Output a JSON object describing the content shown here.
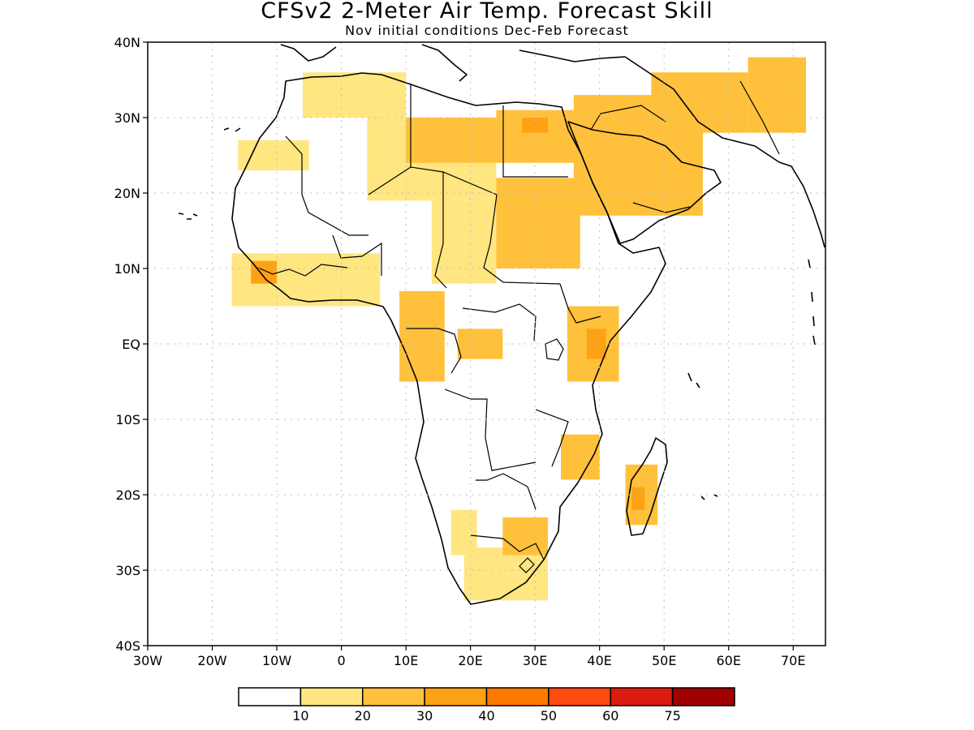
{
  "title": "CFSv2 2-Meter Air Temp. Forecast Skill",
  "subtitle": "Nov initial conditions   Dec-Feb Forecast",
  "axes": {
    "lon_labels": [
      "30W",
      "20W",
      "10W",
      "0",
      "10E",
      "20E",
      "30E",
      "40E",
      "50E",
      "60E",
      "70E"
    ],
    "lon_values": [
      -30,
      -20,
      -10,
      0,
      10,
      20,
      30,
      40,
      50,
      60,
      70
    ],
    "lat_labels": [
      "40N",
      "30N",
      "20N",
      "10N",
      "EQ",
      "10S",
      "20S",
      "30S",
      "40S"
    ],
    "lat_values": [
      40,
      30,
      20,
      10,
      0,
      -10,
      -20,
      -30,
      -40
    ],
    "lon_range": [
      -30,
      75
    ],
    "lat_range": [
      -40,
      40
    ]
  },
  "colorbar": {
    "labels": [
      "10",
      "20",
      "30",
      "40",
      "50",
      "60",
      "75"
    ],
    "colors": [
      "#ffffff",
      "#ffe680",
      "#ffc13c",
      "#ffa114",
      "#ff7a00",
      "#ff4a10",
      "#dc1a10",
      "#a00000"
    ]
  },
  "regions": [
    {
      "level": 1,
      "pts": [
        [
          -16,
          27
        ],
        [
          -5,
          27
        ],
        [
          -5,
          23
        ],
        [
          -16,
          23
        ]
      ]
    },
    {
      "level": 1,
      "pts": [
        [
          -6,
          36
        ],
        [
          10,
          36
        ],
        [
          10,
          30
        ],
        [
          -6,
          30
        ]
      ]
    },
    {
      "level": 1,
      "pts": [
        [
          4,
          30
        ],
        [
          24,
          30
        ],
        [
          24,
          19
        ],
        [
          4,
          19
        ]
      ]
    },
    {
      "level": 2,
      "pts": [
        [
          10,
          30
        ],
        [
          24,
          30
        ],
        [
          24,
          24
        ],
        [
          10,
          24
        ]
      ]
    },
    {
      "level": 1,
      "pts": [
        [
          14,
          19
        ],
        [
          24,
          19
        ],
        [
          24,
          8
        ],
        [
          14,
          8
        ]
      ]
    },
    {
      "level": 2,
      "pts": [
        [
          24,
          31
        ],
        [
          36,
          31
        ],
        [
          36,
          24
        ],
        [
          24,
          24
        ]
      ]
    },
    {
      "level": 3,
      "pts": [
        [
          28,
          30
        ],
        [
          32,
          30
        ],
        [
          32,
          28
        ],
        [
          28,
          28
        ]
      ]
    },
    {
      "level": 2,
      "pts": [
        [
          24,
          22
        ],
        [
          37,
          22
        ],
        [
          37,
          10
        ],
        [
          24,
          10
        ]
      ]
    },
    {
      "level": 2,
      "pts": [
        [
          36,
          33
        ],
        [
          56,
          33
        ],
        [
          56,
          17
        ],
        [
          36,
          17
        ]
      ]
    },
    {
      "level": 2,
      "pts": [
        [
          48,
          36
        ],
        [
          63,
          36
        ],
        [
          63,
          28
        ],
        [
          48,
          28
        ]
      ]
    },
    {
      "level": 2,
      "pts": [
        [
          63,
          38
        ],
        [
          72,
          38
        ],
        [
          72,
          28
        ],
        [
          63,
          28
        ]
      ]
    },
    {
      "level": 1,
      "pts": [
        [
          -17,
          12
        ],
        [
          6,
          12
        ],
        [
          6,
          5
        ],
        [
          -17,
          5
        ]
      ]
    },
    {
      "level": 3,
      "pts": [
        [
          -14,
          11
        ],
        [
          -10,
          11
        ],
        [
          -10,
          8
        ],
        [
          -14,
          8
        ]
      ]
    },
    {
      "level": 2,
      "pts": [
        [
          9,
          7
        ],
        [
          16,
          7
        ],
        [
          16,
          -5
        ],
        [
          9,
          -5
        ]
      ]
    },
    {
      "level": 2,
      "pts": [
        [
          18,
          2
        ],
        [
          25,
          2
        ],
        [
          25,
          -2
        ],
        [
          18,
          -2
        ]
      ]
    },
    {
      "level": 2,
      "pts": [
        [
          35,
          5
        ],
        [
          43,
          5
        ],
        [
          43,
          -5
        ],
        [
          35,
          -5
        ]
      ]
    },
    {
      "level": 3,
      "pts": [
        [
          38,
          2
        ],
        [
          41,
          2
        ],
        [
          41,
          -2
        ],
        [
          38,
          -2
        ]
      ]
    },
    {
      "level": 2,
      "pts": [
        [
          34,
          -12
        ],
        [
          40,
          -12
        ],
        [
          40,
          -18
        ],
        [
          34,
          -18
        ]
      ]
    },
    {
      "level": 2,
      "pts": [
        [
          44,
          -16
        ],
        [
          49,
          -16
        ],
        [
          49,
          -24
        ],
        [
          44,
          -24
        ]
      ]
    },
    {
      "level": 3,
      "pts": [
        [
          45,
          -19
        ],
        [
          47,
          -19
        ],
        [
          47,
          -22
        ],
        [
          45,
          -22
        ]
      ]
    },
    {
      "level": 1,
      "pts": [
        [
          17,
          -22
        ],
        [
          21,
          -22
        ],
        [
          21,
          -28
        ],
        [
          17,
          -28
        ]
      ]
    },
    {
      "level": 1,
      "pts": [
        [
          19,
          -27
        ],
        [
          32,
          -27
        ],
        [
          32,
          -34
        ],
        [
          19,
          -34
        ]
      ]
    },
    {
      "level": 2,
      "pts": [
        [
          25,
          -23
        ],
        [
          32,
          -23
        ],
        [
          32,
          -28
        ],
        [
          25,
          -28
        ]
      ]
    }
  ]
}
